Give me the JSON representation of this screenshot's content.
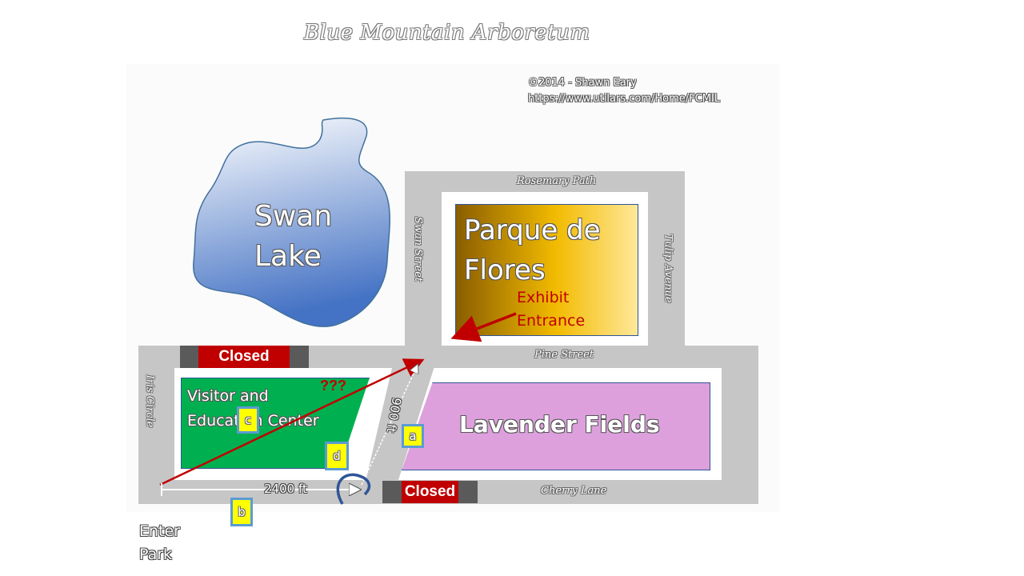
{
  "title": "Blue Mountain Arboretum",
  "credit": {
    "line1": "©2014 - Shawn Eary",
    "line2": "https://www.utilars.com/Home/FCMIL"
  },
  "areas": {
    "swan_lake": [
      "Swan",
      "Lake"
    ],
    "parque": [
      "Parque de",
      "Flores"
    ],
    "exhibit_entrance": [
      "Exhibit",
      "Entrance"
    ],
    "visitor_center": [
      "Visitor and",
      "Education Center"
    ],
    "lavender": "Lavender Fields",
    "enter_park": [
      "Enter",
      "Park"
    ]
  },
  "streets": {
    "rosemary": "Rosemary Path",
    "swan_street": "Swan Street",
    "tulip": "Tulip Avenue",
    "pine": "Pine Street",
    "iris": "Iris Circle",
    "cherry": "Cherry Lane"
  },
  "closed": {
    "top": "Closed",
    "bottom": "Closed"
  },
  "distances": {
    "horizontal": "2400 ft",
    "diagonal": "900 ft"
  },
  "question": "???",
  "markers": {
    "a": "a",
    "b": "b",
    "c": "c",
    "d": "d"
  },
  "colors": {
    "road": "#c6c6c6",
    "closed": "#c00000",
    "visitor_center": "#00b050",
    "lavender": "#dda0dd",
    "marker_fill": "#ffff00",
    "marker_border": "#5b9bd5",
    "arrow": "#c00000"
  }
}
